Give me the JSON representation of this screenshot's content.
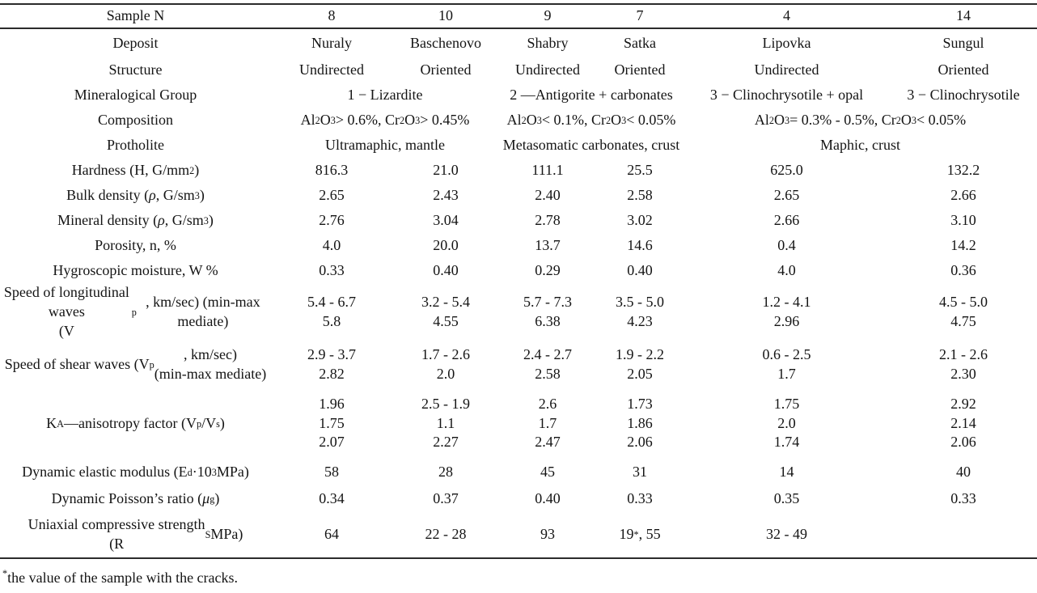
{
  "table": {
    "header": {
      "label": "Sample N",
      "values": [
        "8",
        "10",
        "9",
        "7",
        "4",
        "14"
      ]
    },
    "rows": [
      {
        "label": "Deposit",
        "values": [
          "Nuraly",
          "Baschenovo",
          "Shabry",
          "Satka",
          "Lipovka",
          "Sungul"
        ]
      },
      {
        "label": "Structure",
        "values": [
          "Undirected",
          "Oriented",
          "Undirected",
          "Oriented",
          "Undirected",
          "Oriented"
        ]
      },
      {
        "label": "Mineralogical Group",
        "cells": [
          {
            "span": 2,
            "text": "1 − Lizardite"
          },
          {
            "span": 2,
            "text": "2 —Antigorite + carbonates"
          },
          {
            "span": 1,
            "text": "3 − Clinochrysotile + opal"
          },
          {
            "span": 1,
            "text": "3 − Clinochrysotile"
          }
        ]
      },
      {
        "label": "Composition",
        "cells": [
          {
            "span": 2,
            "text": "Al_{2}O_{3} > 0.6%, Cr_{2}O_{3} > 0.45%"
          },
          {
            "span": 2,
            "text": "Al_{2}O_{3} < 0.1%, Cr_{2}O_{3} < 0.05%"
          },
          {
            "span": 2,
            "text": "Al_{2}O_{3} = 0.3% - 0.5%, Cr_{2}O_{3} < 0.05%"
          }
        ]
      },
      {
        "label": "Protholite",
        "cells": [
          {
            "span": 2,
            "text": "Ultramaphic, mantle"
          },
          {
            "span": 2,
            "text": "Metasomatic carbonates, crust"
          },
          {
            "span": 2,
            "text": "Maphic, crust"
          }
        ]
      },
      {
        "label": "Hardness (H, G/mm^{2})",
        "values": [
          "816.3",
          "21.0",
          "111.1",
          "25.5",
          "625.0",
          "132.2"
        ]
      },
      {
        "label": "Bulk density (ρ, G/sm^{3})",
        "values": [
          "2.65",
          "2.43",
          "2.40",
          "2.58",
          "2.65",
          "2.66"
        ]
      },
      {
        "label": "Mineral density (ρ, G/sm^{3})",
        "values": [
          "2.76",
          "3.04",
          "2.78",
          "3.02",
          "2.66",
          "3.10"
        ]
      },
      {
        "label": "Porosity, n, %",
        "values": [
          "4.0",
          "20.0",
          "13.7",
          "14.6",
          "0.4",
          "14.2"
        ]
      },
      {
        "label": "Hygroscopic moisture, W %",
        "values": [
          "0.33",
          "0.40",
          "0.29",
          "0.40",
          "4.0",
          "0.36"
        ]
      },
      {
        "label": "Speed of longitudinal waves\n(V_{p}, km/sec) (min-max mediate)",
        "values": [
          "5.4 - 6.7\n5.8",
          "3.2 - 5.4\n4.55",
          "5.7 - 7.3\n6.38",
          "3.5 - 5.0\n4.23",
          "1.2 - 4.1\n2.96",
          "4.5 - 5.0\n4.75"
        ]
      },
      {
        "label": "Speed of shear waves (V_{p}, km/sec)\n(min-max mediate)",
        "values": [
          "2.9 - 3.7\n2.82",
          "1.7 - 2.6\n2.0",
          "2.4 - 2.7\n2.58",
          "1.9 - 2.2\n2.05",
          "0.6 - 2.5\n1.7",
          "2.1 - 2.6\n2.30"
        ]
      },
      {
        "label": "K_{A}—anisotropy factor (V_{p}/V_{s})",
        "values": [
          "1.96\n1.75\n2.07",
          "2.5 - 1.9\n1.1\n2.27",
          "2.6\n1.7\n2.47",
          "1.73\n1.86\n2.06",
          "1.75\n2.0\n1.74",
          "2.92\n2.14\n2.06"
        ]
      },
      {
        "label": "Dynamic elastic modulus (E_{d}·10^{3} MPa)",
        "values": [
          "58",
          "28",
          "45",
          "31",
          "14",
          "40"
        ]
      },
      {
        "label": "Dynamic Poisson’s ratio (μ_{g})",
        "values": [
          "0.34",
          "0.37",
          "0.40",
          "0.33",
          "0.35",
          "0.33"
        ]
      },
      {
        "label": "Uniaxial compressive strength\n(R_{S} MPa)",
        "values": [
          "64",
          "22 - 28",
          "93",
          "19^{*}, 55",
          "32 - 49",
          ""
        ]
      }
    ]
  },
  "document": {
    "footnote": {
      "marker": "*",
      "text": "the value of the sample with the cracks."
    }
  }
}
